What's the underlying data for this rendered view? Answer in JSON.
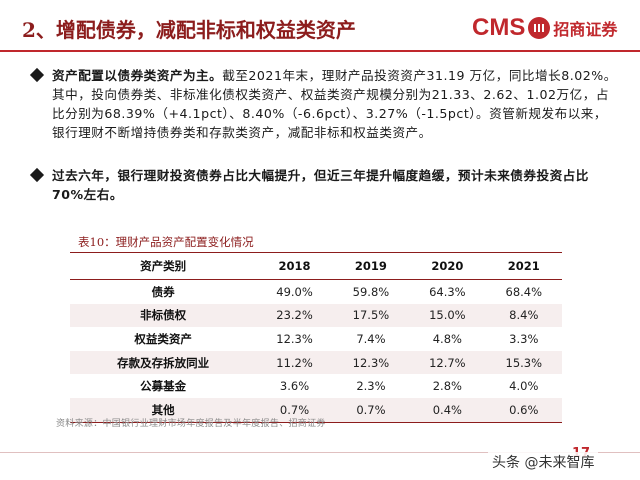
{
  "header": {
    "title": "2、增配债券，减配非标和权益类资产",
    "logo_text": "CMS",
    "logo_badge_icon": "cms-coin-icon",
    "logo_zh": "招商证券",
    "brand_color": "#c0282d"
  },
  "bullets": [
    {
      "lead": "资产配置以债券类资产为主。",
      "text": "截至2021年末，理财产品投资资产31.19 万亿，同比增长8.02%。其中，投向债券类、非标准化债权类资产、权益类资产规模分别为21.33、2.62、1.02万亿，占比分别为68.39%（+4.1pct）、8.40%（-6.6pct）、3.27%（-1.5pct）。资管新规发布以来，银行理财不断增持债券类和存款类资产，减配非标和权益类资产。"
    },
    {
      "lead": "过去六年，银行理财投资债券占比大幅提升，但近三年提升幅度趋缓，预计未来债券投资占比70%左右。",
      "text": ""
    }
  ],
  "table": {
    "title": "表10：理财产品资产配置变化情况",
    "columns": [
      "资产类别",
      "2018",
      "2019",
      "2020",
      "2021"
    ],
    "rows": [
      [
        "债券",
        "49.0%",
        "59.8%",
        "64.3%",
        "68.4%"
      ],
      [
        "非标债权",
        "23.2%",
        "17.5%",
        "15.0%",
        "8.4%"
      ],
      [
        "权益类资产",
        "12.3%",
        "7.4%",
        "4.8%",
        "3.3%"
      ],
      [
        "存款及存拆放同业",
        "11.2%",
        "12.3%",
        "12.7%",
        "15.3%"
      ],
      [
        "公募基金",
        "3.6%",
        "2.3%",
        "2.8%",
        "4.0%"
      ],
      [
        "其他",
        "0.7%",
        "0.7%",
        "0.4%",
        "0.6%"
      ]
    ],
    "row_colors": [
      "#ffffff",
      "#f6eeee"
    ]
  },
  "source": "资料来源：中国银行业理财市场年度报告及半年度报告、招商证券",
  "footer": {
    "page_number": "17",
    "watermark": "头条 @未来智库"
  }
}
